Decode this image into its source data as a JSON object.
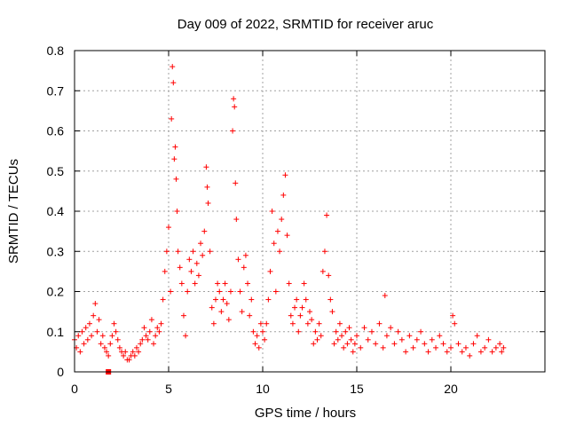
{
  "chart_data": {
    "type": "scatter",
    "title": "Day 009 of 2022, SRMTID for receiver aruc",
    "xlabel": "GPS time / hours",
    "ylabel": "SRMTID / TECUs",
    "xlim": [
      0,
      25
    ],
    "ylim": [
      0,
      0.8
    ],
    "xticks": [
      0,
      5,
      10,
      15,
      20
    ],
    "yticks": [
      0,
      0.1,
      0.2,
      0.3,
      0.4,
      0.5,
      0.6,
      0.7,
      0.8
    ],
    "xtick_labels": [
      "0",
      "5",
      "10",
      "15",
      "20"
    ],
    "ytick_labels": [
      "0",
      "0.1",
      "0.2",
      "0.3",
      "0.4",
      "0.5",
      "0.6",
      "0.7",
      "0.8"
    ],
    "grid": true,
    "marker": "+",
    "color": "#ff0000",
    "series": [
      {
        "name": "SRMTID",
        "points": [
          [
            0.0,
            0.08
          ],
          [
            0.1,
            0.06
          ],
          [
            0.2,
            0.09
          ],
          [
            0.3,
            0.05
          ],
          [
            0.4,
            0.1
          ],
          [
            0.5,
            0.07
          ],
          [
            0.6,
            0.11
          ],
          [
            0.7,
            0.08
          ],
          [
            0.8,
            0.12
          ],
          [
            0.9,
            0.09
          ],
          [
            1.0,
            0.14
          ],
          [
            1.1,
            0.17
          ],
          [
            1.2,
            0.1
          ],
          [
            1.3,
            0.13
          ],
          [
            1.4,
            0.07
          ],
          [
            1.5,
            0.09
          ],
          [
            1.6,
            0.06
          ],
          [
            1.7,
            0.05
          ],
          [
            1.8,
            0.04
          ],
          [
            1.9,
            0.07
          ],
          [
            2.0,
            0.09
          ],
          [
            2.1,
            0.12
          ],
          [
            2.2,
            0.1
          ],
          [
            2.3,
            0.08
          ],
          [
            2.4,
            0.06
          ],
          [
            2.5,
            0.05
          ],
          [
            2.6,
            0.04
          ],
          [
            2.7,
            0.05
          ],
          [
            2.8,
            0.03
          ],
          [
            2.9,
            0.03
          ],
          [
            3.0,
            0.04
          ],
          [
            3.1,
            0.05
          ],
          [
            3.2,
            0.04
          ],
          [
            3.3,
            0.06
          ],
          [
            3.4,
            0.05
          ],
          [
            3.5,
            0.07
          ],
          [
            3.6,
            0.08
          ],
          [
            3.7,
            0.11
          ],
          [
            3.8,
            0.09
          ],
          [
            3.9,
            0.08
          ],
          [
            4.0,
            0.1
          ],
          [
            4.1,
            0.13
          ],
          [
            4.2,
            0.07
          ],
          [
            4.3,
            0.09
          ],
          [
            4.4,
            0.11
          ],
          [
            4.5,
            0.1
          ],
          [
            4.6,
            0.12
          ],
          [
            4.7,
            0.18
          ],
          [
            4.8,
            0.25
          ],
          [
            4.9,
            0.3
          ],
          [
            5.0,
            0.36
          ],
          [
            5.1,
            0.2
          ],
          [
            5.15,
            0.63
          ],
          [
            5.2,
            0.76
          ],
          [
            5.25,
            0.72
          ],
          [
            5.3,
            0.53
          ],
          [
            5.35,
            0.56
          ],
          [
            5.4,
            0.48
          ],
          [
            5.45,
            0.4
          ],
          [
            5.5,
            0.3
          ],
          [
            5.6,
            0.26
          ],
          [
            5.7,
            0.22
          ],
          [
            5.8,
            0.14
          ],
          [
            5.9,
            0.09
          ],
          [
            6.0,
            0.2
          ],
          [
            6.1,
            0.28
          ],
          [
            6.2,
            0.25
          ],
          [
            6.3,
            0.3
          ],
          [
            6.4,
            0.22
          ],
          [
            6.5,
            0.27
          ],
          [
            6.6,
            0.24
          ],
          [
            6.7,
            0.32
          ],
          [
            6.8,
            0.29
          ],
          [
            6.9,
            0.35
          ],
          [
            7.0,
            0.51
          ],
          [
            7.05,
            0.46
          ],
          [
            7.1,
            0.42
          ],
          [
            7.2,
            0.3
          ],
          [
            7.3,
            0.16
          ],
          [
            7.4,
            0.12
          ],
          [
            7.5,
            0.18
          ],
          [
            7.6,
            0.22
          ],
          [
            7.7,
            0.2
          ],
          [
            7.8,
            0.15
          ],
          [
            7.9,
            0.18
          ],
          [
            8.0,
            0.22
          ],
          [
            8.1,
            0.17
          ],
          [
            8.2,
            0.13
          ],
          [
            8.3,
            0.2
          ],
          [
            8.4,
            0.6
          ],
          [
            8.45,
            0.68
          ],
          [
            8.5,
            0.66
          ],
          [
            8.55,
            0.47
          ],
          [
            8.6,
            0.38
          ],
          [
            8.7,
            0.28
          ],
          [
            8.8,
            0.2
          ],
          [
            8.9,
            0.15
          ],
          [
            9.0,
            0.26
          ],
          [
            9.1,
            0.29
          ],
          [
            9.2,
            0.22
          ],
          [
            9.3,
            0.14
          ],
          [
            9.4,
            0.18
          ],
          [
            9.5,
            0.1
          ],
          [
            9.6,
            0.07
          ],
          [
            9.7,
            0.09
          ],
          [
            9.8,
            0.06
          ],
          [
            9.9,
            0.12
          ],
          [
            10.0,
            0.1
          ],
          [
            10.1,
            0.08
          ],
          [
            10.2,
            0.12
          ],
          [
            10.3,
            0.18
          ],
          [
            10.4,
            0.25
          ],
          [
            10.5,
            0.4
          ],
          [
            10.6,
            0.32
          ],
          [
            10.7,
            0.2
          ],
          [
            10.8,
            0.35
          ],
          [
            10.9,
            0.3
          ],
          [
            11.0,
            0.38
          ],
          [
            11.1,
            0.44
          ],
          [
            11.2,
            0.49
          ],
          [
            11.3,
            0.34
          ],
          [
            11.4,
            0.22
          ],
          [
            11.5,
            0.14
          ],
          [
            11.6,
            0.12
          ],
          [
            11.7,
            0.16
          ],
          [
            11.8,
            0.18
          ],
          [
            11.9,
            0.1
          ],
          [
            12.0,
            0.14
          ],
          [
            12.1,
            0.16
          ],
          [
            12.2,
            0.22
          ],
          [
            12.3,
            0.18
          ],
          [
            12.4,
            0.12
          ],
          [
            12.5,
            0.15
          ],
          [
            12.6,
            0.13
          ],
          [
            12.7,
            0.07
          ],
          [
            12.8,
            0.1
          ],
          [
            12.9,
            0.08
          ],
          [
            13.0,
            0.12
          ],
          [
            13.1,
            0.09
          ],
          [
            13.2,
            0.25
          ],
          [
            13.3,
            0.3
          ],
          [
            13.4,
            0.39
          ],
          [
            13.5,
            0.24
          ],
          [
            13.6,
            0.18
          ],
          [
            13.7,
            0.15
          ],
          [
            13.8,
            0.07
          ],
          [
            13.9,
            0.1
          ],
          [
            14.0,
            0.08
          ],
          [
            14.1,
            0.12
          ],
          [
            14.2,
            0.09
          ],
          [
            14.3,
            0.06
          ],
          [
            14.4,
            0.1
          ],
          [
            14.5,
            0.07
          ],
          [
            14.6,
            0.11
          ],
          [
            14.7,
            0.08
          ],
          [
            14.8,
            0.05
          ],
          [
            14.9,
            0.07
          ],
          [
            15.0,
            0.09
          ],
          [
            15.2,
            0.06
          ],
          [
            15.4,
            0.11
          ],
          [
            15.6,
            0.08
          ],
          [
            15.8,
            0.1
          ],
          [
            16.0,
            0.07
          ],
          [
            16.2,
            0.12
          ],
          [
            16.4,
            0.06
          ],
          [
            16.5,
            0.19
          ],
          [
            16.6,
            0.09
          ],
          [
            16.8,
            0.11
          ],
          [
            17.0,
            0.07
          ],
          [
            17.2,
            0.1
          ],
          [
            17.4,
            0.08
          ],
          [
            17.6,
            0.05
          ],
          [
            17.8,
            0.09
          ],
          [
            18.0,
            0.06
          ],
          [
            18.2,
            0.08
          ],
          [
            18.4,
            0.1
          ],
          [
            18.6,
            0.07
          ],
          [
            18.8,
            0.05
          ],
          [
            19.0,
            0.08
          ],
          [
            19.2,
            0.06
          ],
          [
            19.4,
            0.09
          ],
          [
            19.6,
            0.07
          ],
          [
            19.8,
            0.05
          ],
          [
            20.0,
            0.06
          ],
          [
            20.1,
            0.14
          ],
          [
            20.2,
            0.12
          ],
          [
            20.4,
            0.07
          ],
          [
            20.6,
            0.05
          ],
          [
            20.8,
            0.06
          ],
          [
            21.0,
            0.04
          ],
          [
            21.2,
            0.07
          ],
          [
            21.4,
            0.09
          ],
          [
            21.6,
            0.05
          ],
          [
            21.8,
            0.06
          ],
          [
            22.0,
            0.08
          ],
          [
            22.2,
            0.05
          ],
          [
            22.4,
            0.06
          ],
          [
            22.6,
            0.07
          ],
          [
            22.7,
            0.05
          ],
          [
            22.8,
            0.06
          ]
        ]
      }
    ],
    "special_marker": {
      "x": 1.8,
      "y": 0.0
    }
  }
}
